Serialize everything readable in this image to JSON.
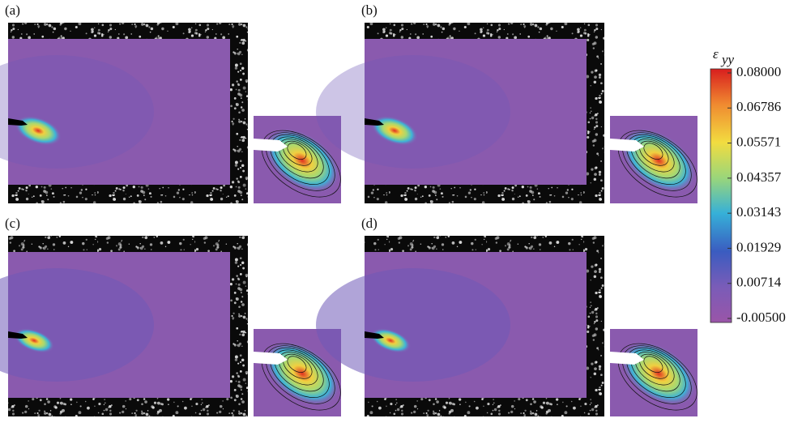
{
  "panels": [
    {
      "label": "(a)"
    },
    {
      "label": "(b)"
    },
    {
      "label": "(c)"
    },
    {
      "label": "(d)"
    }
  ],
  "colorbar": {
    "symbol": "ε",
    "subscript": "yy",
    "ticks": [
      "0.08000",
      "0.06786",
      "0.05571",
      "0.04357",
      "0.03143",
      "0.01929",
      "0.00714",
      "-0.00500"
    ]
  }
}
